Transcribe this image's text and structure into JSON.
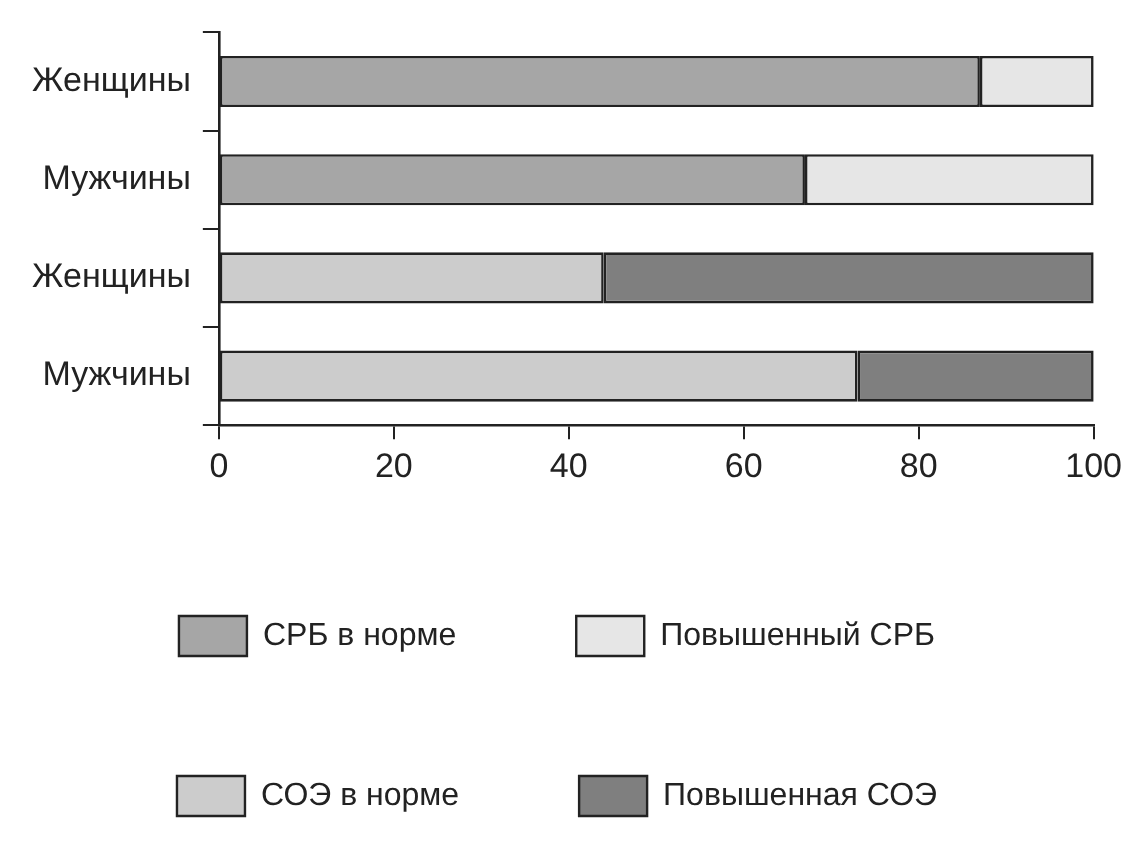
{
  "chart_data": {
    "type": "bar",
    "orientation": "horizontal",
    "stacked": true,
    "categories": [
      "Женщины",
      "Мужчины",
      "Женщины",
      "Мужчины"
    ],
    "series": [
      {
        "name": "СРБ в норме",
        "color": "#a6a6a6",
        "values": [
          87,
          67,
          null,
          null
        ]
      },
      {
        "name": "Повышенный СРБ",
        "color": "#e6e6e6",
        "values": [
          13,
          33,
          null,
          null
        ]
      },
      {
        "name": "СОЭ в норме",
        "color": "#cccccc",
        "values": [
          null,
          null,
          44,
          73
        ]
      },
      {
        "name": "Повышенная СОЭ",
        "color": "#7f7f7f",
        "values": [
          null,
          null,
          56,
          27
        ]
      }
    ],
    "xlim": [
      0,
      100
    ],
    "xticks": [
      0,
      20,
      40,
      60,
      80,
      100
    ],
    "grid": false,
    "legend": "bottom"
  }
}
